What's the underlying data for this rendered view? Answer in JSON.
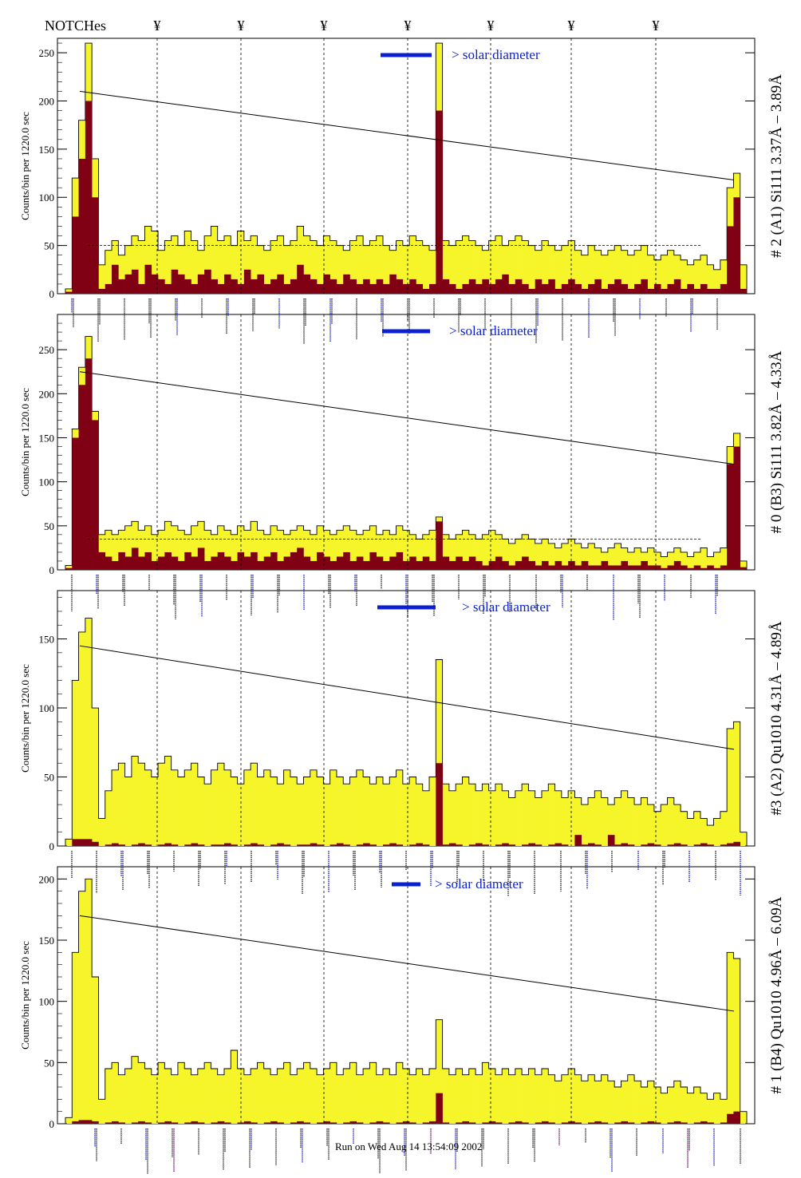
{
  "header": {
    "notches_label": "NOTCHes",
    "notch_symbol": "¥"
  },
  "footer": {
    "run_text": "Run on Wed Aug 14 13:54:09 2002"
  },
  "colors": {
    "fill_yellow": "#f5f52a",
    "fill_darkred": "#800014",
    "line_black": "#000000",
    "solar_blue": "#0a1fd0",
    "label_blue": "#1a1ad0",
    "label_purple": "#6a0a6a"
  },
  "solar_label": "> solar diameter",
  "chart_data": [
    {
      "type": "bar",
      "title": "# 2 (A1) Si111  3.37Å – 3.89Å",
      "ylabel": "Counts/bin per  1220.0 sec",
      "ylim": [
        0,
        265
      ],
      "yticks": [
        0,
        50,
        100,
        150,
        200,
        250
      ],
      "baseline": 50,
      "fit_line": [
        210,
        118
      ],
      "series": [
        {
          "name": "total",
          "values": [
            5,
            120,
            180,
            260,
            140,
            30,
            45,
            55,
            40,
            50,
            60,
            55,
            70,
            65,
            45,
            55,
            60,
            50,
            65,
            55,
            45,
            60,
            70,
            55,
            60,
            50,
            65,
            55,
            60,
            50,
            45,
            55,
            60,
            50,
            55,
            70,
            60,
            55,
            50,
            60,
            55,
            50,
            45,
            55,
            60,
            50,
            55,
            60,
            50,
            45,
            55,
            50,
            60,
            55,
            50,
            45,
            260,
            55,
            50,
            55,
            60,
            55,
            50,
            45,
            55,
            60,
            50,
            55,
            60,
            55,
            50,
            45,
            55,
            50,
            45,
            50,
            55,
            45,
            40,
            50,
            45,
            40,
            45,
            50,
            45,
            40,
            45,
            50,
            40,
            35,
            40,
            45,
            40,
            35,
            30,
            35,
            40,
            30,
            25,
            35,
            110,
            125,
            30
          ]
        },
        {
          "name": "net",
          "values": [
            2,
            80,
            140,
            200,
            100,
            5,
            10,
            30,
            15,
            20,
            25,
            10,
            30,
            20,
            15,
            10,
            25,
            20,
            15,
            10,
            20,
            25,
            15,
            10,
            20,
            15,
            10,
            25,
            15,
            20,
            10,
            15,
            20,
            10,
            15,
            30,
            20,
            15,
            10,
            20,
            15,
            10,
            20,
            15,
            10,
            15,
            10,
            15,
            10,
            20,
            15,
            10,
            15,
            10,
            5,
            10,
            190,
            15,
            10,
            5,
            10,
            15,
            10,
            15,
            10,
            15,
            20,
            10,
            15,
            10,
            5,
            15,
            10,
            15,
            5,
            10,
            15,
            10,
            5,
            10,
            15,
            5,
            10,
            15,
            10,
            5,
            10,
            15,
            5,
            10,
            5,
            10,
            15,
            5,
            10,
            5,
            10,
            5,
            5,
            10,
            70,
            100,
            5
          ]
        }
      ]
    },
    {
      "type": "bar",
      "title": "# 0 (B3) Si111  3.82Å – 4.33Å",
      "ylabel": "Counts/bin per  1220.0 sec",
      "ylim": [
        0,
        290
      ],
      "yticks": [
        0,
        50,
        100,
        150,
        200,
        250
      ],
      "baseline": 35,
      "fit_line": [
        225,
        120
      ],
      "series": [
        {
          "name": "total",
          "values": [
            5,
            160,
            230,
            265,
            180,
            40,
            45,
            40,
            45,
            50,
            55,
            45,
            50,
            40,
            45,
            55,
            50,
            45,
            40,
            50,
            55,
            45,
            40,
            50,
            45,
            40,
            50,
            45,
            55,
            45,
            40,
            50,
            45,
            40,
            45,
            50,
            45,
            40,
            50,
            45,
            40,
            45,
            50,
            45,
            40,
            45,
            50,
            40,
            45,
            40,
            50,
            45,
            40,
            35,
            40,
            45,
            60,
            40,
            35,
            40,
            45,
            40,
            35,
            40,
            45,
            40,
            35,
            30,
            35,
            40,
            35,
            30,
            35,
            30,
            25,
            30,
            35,
            30,
            25,
            30,
            25,
            20,
            25,
            30,
            25,
            20,
            25,
            20,
            25,
            20,
            15,
            20,
            25,
            20,
            15,
            20,
            25,
            15,
            20,
            25,
            140,
            155,
            10
          ]
        },
        {
          "name": "net",
          "values": [
            2,
            150,
            210,
            240,
            170,
            20,
            15,
            10,
            20,
            15,
            25,
            15,
            20,
            10,
            15,
            20,
            15,
            10,
            20,
            15,
            25,
            10,
            15,
            20,
            15,
            10,
            20,
            15,
            20,
            10,
            15,
            20,
            10,
            15,
            20,
            25,
            15,
            10,
            20,
            15,
            10,
            15,
            20,
            10,
            15,
            10,
            20,
            15,
            10,
            15,
            20,
            10,
            15,
            10,
            15,
            10,
            55,
            15,
            10,
            15,
            10,
            15,
            10,
            5,
            10,
            15,
            10,
            5,
            10,
            15,
            10,
            5,
            10,
            5,
            10,
            5,
            10,
            5,
            10,
            5,
            5,
            10,
            5,
            5,
            10,
            5,
            5,
            10,
            5,
            5,
            2,
            5,
            10,
            5,
            2,
            5,
            2,
            5,
            2,
            5,
            120,
            140,
            3
          ]
        }
      ]
    },
    {
      "type": "bar",
      "title": "#3 (A2) Qu1010  4.31Å – 4.89Å",
      "ylabel": "Counts/bin per  1220.0 sec",
      "ylim": [
        0,
        185
      ],
      "yticks": [
        0,
        50,
        100,
        150
      ],
      "baseline": null,
      "fit_line": [
        145,
        70
      ],
      "series": [
        {
          "name": "total",
          "values": [
            5,
            120,
            155,
            165,
            100,
            20,
            40,
            55,
            60,
            50,
            65,
            60,
            55,
            50,
            60,
            65,
            55,
            50,
            55,
            60,
            50,
            45,
            55,
            60,
            55,
            50,
            45,
            55,
            60,
            50,
            55,
            50,
            45,
            55,
            50,
            45,
            50,
            55,
            50,
            45,
            55,
            50,
            45,
            50,
            55,
            50,
            45,
            50,
            45,
            50,
            55,
            45,
            50,
            45,
            40,
            50,
            135,
            45,
            40,
            45,
            50,
            45,
            40,
            45,
            40,
            45,
            40,
            35,
            40,
            45,
            40,
            35,
            40,
            45,
            40,
            35,
            40,
            35,
            30,
            35,
            40,
            35,
            30,
            35,
            40,
            35,
            30,
            35,
            30,
            25,
            30,
            35,
            30,
            25,
            20,
            25,
            20,
            15,
            20,
            25,
            85,
            90,
            10
          ]
        },
        {
          "name": "net",
          "values": [
            0,
            5,
            5,
            5,
            3,
            0,
            1,
            2,
            1,
            0,
            1,
            2,
            1,
            0,
            1,
            2,
            1,
            0,
            1,
            2,
            1,
            0,
            1,
            1,
            2,
            1,
            0,
            1,
            2,
            1,
            0,
            1,
            2,
            1,
            0,
            1,
            1,
            2,
            1,
            0,
            1,
            2,
            1,
            0,
            1,
            2,
            1,
            0,
            1,
            2,
            1,
            0,
            1,
            2,
            1,
            0,
            60,
            1,
            2,
            1,
            0,
            1,
            2,
            1,
            0,
            1,
            2,
            1,
            0,
            1,
            2,
            1,
            0,
            1,
            2,
            1,
            0,
            8,
            1,
            2,
            1,
            0,
            8,
            1,
            2,
            1,
            0,
            1,
            2,
            1,
            0,
            1,
            2,
            1,
            0,
            1,
            2,
            1,
            0,
            1,
            2,
            3,
            0
          ]
        }
      ]
    },
    {
      "type": "bar",
      "title": "# 1 (B4) Qu1010 4.96Å – 6.09Å",
      "ylabel": "Counts/bin per  1220.0 sec",
      "ylim": [
        0,
        210
      ],
      "yticks": [
        0,
        50,
        100,
        150,
        200
      ],
      "baseline": null,
      "fit_line": [
        170,
        92
      ],
      "series": [
        {
          "name": "total",
          "values": [
            5,
            140,
            190,
            200,
            120,
            20,
            45,
            50,
            40,
            45,
            55,
            50,
            45,
            40,
            50,
            45,
            40,
            50,
            45,
            40,
            45,
            50,
            45,
            40,
            45,
            60,
            45,
            40,
            45,
            50,
            45,
            40,
            45,
            50,
            40,
            45,
            50,
            45,
            40,
            45,
            50,
            40,
            45,
            50,
            40,
            45,
            50,
            40,
            45,
            40,
            50,
            45,
            40,
            45,
            40,
            45,
            85,
            45,
            40,
            45,
            40,
            45,
            40,
            50,
            45,
            40,
            45,
            40,
            45,
            40,
            45,
            40,
            45,
            40,
            35,
            40,
            45,
            40,
            35,
            40,
            35,
            40,
            35,
            30,
            35,
            40,
            35,
            30,
            35,
            30,
            25,
            30,
            35,
            30,
            25,
            30,
            25,
            20,
            25,
            20,
            140,
            135,
            10
          ]
        },
        {
          "name": "net",
          "values": [
            0,
            2,
            3,
            3,
            2,
            0,
            1,
            2,
            1,
            0,
            1,
            2,
            1,
            0,
            1,
            2,
            1,
            0,
            1,
            2,
            1,
            0,
            1,
            2,
            1,
            0,
            1,
            2,
            1,
            0,
            1,
            2,
            1,
            0,
            1,
            2,
            1,
            0,
            1,
            2,
            1,
            0,
            1,
            2,
            1,
            0,
            1,
            2,
            1,
            0,
            1,
            2,
            1,
            0,
            1,
            2,
            25,
            1,
            0,
            1,
            2,
            1,
            0,
            1,
            2,
            1,
            0,
            1,
            2,
            1,
            0,
            1,
            2,
            1,
            0,
            1,
            2,
            1,
            0,
            1,
            2,
            1,
            0,
            1,
            2,
            1,
            0,
            1,
            2,
            1,
            0,
            1,
            2,
            1,
            0,
            1,
            2,
            1,
            0,
            1,
            8,
            10,
            0
          ]
        }
      ]
    }
  ]
}
